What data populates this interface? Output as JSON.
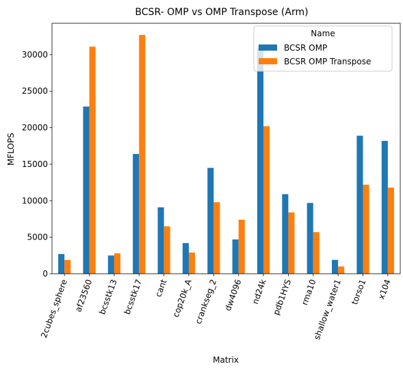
{
  "chart_data": {
    "type": "bar",
    "title": "BCSR- OMP vs OMP Transpose (Arm)",
    "xlabel": "Matrix",
    "ylabel": "MFLOPS",
    "ylim": [
      0,
      34300
    ],
    "yticks": [
      0,
      5000,
      10000,
      15000,
      20000,
      25000,
      30000
    ],
    "grid": false,
    "legend": {
      "title": "Name",
      "placement": "top-right"
    },
    "categories": [
      "2cubes_sphere",
      "af23560",
      "bcsstk13",
      "bcsstk17",
      "cant",
      "cop20k_A",
      "crankseg_2",
      "dw4096",
      "nd24k",
      "pdb1HYS",
      "rma10",
      "shallow_water1",
      "torso1",
      "x104"
    ],
    "series": [
      {
        "name": "BCSR OMP",
        "color": "#1f77b4",
        "values": [
          2700,
          22900,
          2500,
          16400,
          9100,
          4200,
          14500,
          4700,
          31000,
          10900,
          9700,
          1900,
          18900,
          18200
        ]
      },
      {
        "name": "BCSR OMP Transpose",
        "color": "#ff7f0e",
        "values": [
          1900,
          31100,
          2800,
          32700,
          6500,
          2900,
          9800,
          7400,
          20200,
          8400,
          5700,
          1000,
          12200,
          11800
        ]
      }
    ]
  }
}
